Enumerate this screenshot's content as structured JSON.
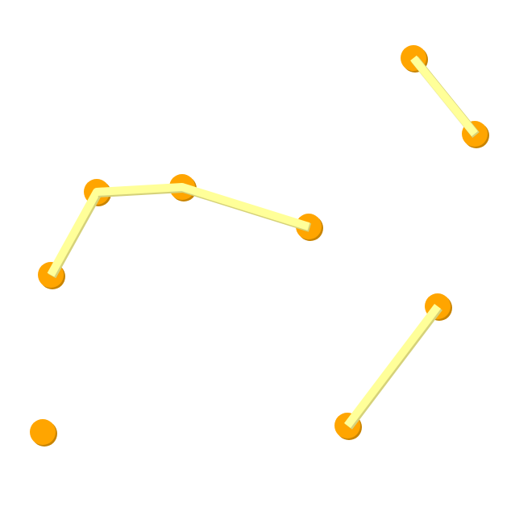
{
  "colors": {
    "background": "#ffffff",
    "node_fill": "#ffa500",
    "node_shadow": "#c98400",
    "edge_fill": "#ffff99",
    "edge_shadow": "#d6d27a"
  },
  "graph": {
    "nodes": [
      {
        "id": "n1"
      },
      {
        "id": "n2"
      },
      {
        "id": "n3"
      },
      {
        "id": "n4"
      },
      {
        "id": "n5"
      },
      {
        "id": "n6"
      },
      {
        "id": "n7"
      },
      {
        "id": "n8"
      },
      {
        "id": "n9"
      }
    ],
    "edges": [
      {
        "from": "n1",
        "to": "n2"
      },
      {
        "from": "n3",
        "to": "n4"
      },
      {
        "from": "n4",
        "to": "n5"
      },
      {
        "from": "n5",
        "to": "n6"
      },
      {
        "from": "n7",
        "to": "n8"
      }
    ]
  }
}
